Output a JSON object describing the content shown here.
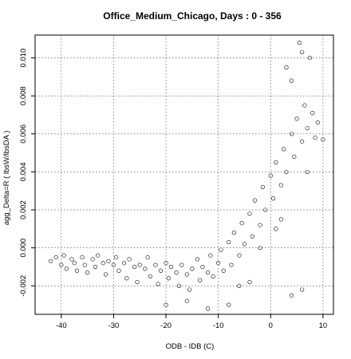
{
  "chart_data": {
    "type": "scatter",
    "title": "Office_Medium_Chicago,  Days : 0 - 356",
    "xlabel": "ODB - IDB (C)",
    "ylabel": "agg_Delta=R  ( lbsW/lbsDA )",
    "xlim": [
      -45,
      12
    ],
    "ylim": [
      -0.0035,
      0.0112
    ],
    "xticks": [
      -40,
      -30,
      -20,
      -10,
      0,
      10
    ],
    "yticks": [
      -0.002,
      0.0,
      0.002,
      0.004,
      0.006,
      0.008,
      0.01
    ],
    "xtick_labels": [
      "-40",
      "-30",
      "-20",
      "-10",
      "0",
      "10"
    ],
    "ytick_labels": [
      "-0.002",
      "0.000",
      "0.002",
      "0.004",
      "0.006",
      "0.008",
      "0.010"
    ],
    "grid": true,
    "marker": "open-circle",
    "color": "#000000",
    "series": [
      {
        "points": [
          [
            -42,
            -0.0007
          ],
          [
            -41,
            -0.0005
          ],
          [
            -40,
            -0.0009
          ],
          [
            -39.5,
            -0.0004
          ],
          [
            -39,
            -0.0011
          ],
          [
            -38,
            -0.0006
          ],
          [
            -37.5,
            -0.0008
          ],
          [
            -37,
            -0.0012
          ],
          [
            -36,
            -0.0005
          ],
          [
            -35.5,
            -0.0009
          ],
          [
            -35,
            -0.0013
          ],
          [
            -34,
            -0.0006
          ],
          [
            -33.5,
            -0.001
          ],
          [
            -33,
            -0.0004
          ],
          [
            -32,
            -0.0008
          ],
          [
            -31.5,
            -0.0014
          ],
          [
            -31,
            -0.0007
          ],
          [
            -30,
            -0.0009
          ],
          [
            -29.5,
            -0.0005
          ],
          [
            -29,
            -0.0012
          ],
          [
            -28,
            -0.0008
          ],
          [
            -27.5,
            -0.0016
          ],
          [
            -27,
            -0.0006
          ],
          [
            -26,
            -0.001
          ],
          [
            -25.5,
            -0.0018
          ],
          [
            -25,
            -0.0009
          ],
          [
            -24,
            -0.0011
          ],
          [
            -23.5,
            -0.0005
          ],
          [
            -23,
            -0.0015
          ],
          [
            -22,
            -0.0009
          ],
          [
            -21.5,
            -0.0019
          ],
          [
            -21,
            -0.0012
          ],
          [
            -20,
            -0.0008
          ],
          [
            -19.5,
            -0.0016
          ],
          [
            -19,
            -0.001
          ],
          [
            -18,
            -0.0013
          ],
          [
            -17.5,
            -0.002
          ],
          [
            -17,
            -0.0009
          ],
          [
            -16,
            -0.0014
          ],
          [
            -15.5,
            -0.0022
          ],
          [
            -15,
            -0.0011
          ],
          [
            -14,
            -0.0006
          ],
          [
            -13.5,
            -0.0017
          ],
          [
            -13,
            -0.001
          ],
          [
            -12,
            -0.0013
          ],
          [
            -11.5,
            -0.0004
          ],
          [
            -11,
            -0.0015
          ],
          [
            -10,
            -0.0008
          ],
          [
            -9.5,
            -0.0001
          ],
          [
            -9,
            -0.0012
          ],
          [
            -8,
            0.0003
          ],
          [
            -7.5,
            -0.0009
          ],
          [
            -7,
            0.0008
          ],
          [
            -6,
            -0.0004
          ],
          [
            -5.5,
            0.0013
          ],
          [
            -5,
            0.0002
          ],
          [
            -4,
            0.0018
          ],
          [
            -3.5,
            0.0006
          ],
          [
            -3,
            0.0025
          ],
          [
            -2,
            0.0012
          ],
          [
            -1.5,
            0.0032
          ],
          [
            -1,
            0.002
          ],
          [
            0,
            0.0038
          ],
          [
            0.5,
            0.0026
          ],
          [
            1,
            0.0045
          ],
          [
            2,
            0.0033
          ],
          [
            2.5,
            0.0052
          ],
          [
            3,
            0.004
          ],
          [
            4,
            0.006
          ],
          [
            4.5,
            0.0048
          ],
          [
            5,
            0.0068
          ],
          [
            6,
            0.0056
          ],
          [
            6.5,
            0.0075
          ],
          [
            7,
            0.0063
          ],
          [
            8,
            0.0071
          ],
          [
            8.5,
            0.0058
          ],
          [
            9,
            0.0066
          ],
          [
            10,
            0.0057
          ],
          [
            5.5,
            0.0108
          ],
          [
            6,
            0.0103
          ],
          [
            7.5,
            0.01
          ],
          [
            3,
            0.0095
          ],
          [
            4,
            0.0088
          ],
          [
            -20,
            -0.003
          ],
          [
            -16,
            -0.0028
          ],
          [
            -12,
            -0.0032
          ],
          [
            -8,
            -0.003
          ],
          [
            4,
            -0.0025
          ],
          [
            6,
            -0.0022
          ],
          [
            -2,
            0.0
          ],
          [
            1,
            0.001
          ],
          [
            -6,
            -0.002
          ],
          [
            -4,
            -0.0018
          ],
          [
            2,
            0.0015
          ],
          [
            7,
            0.004
          ]
        ]
      }
    ]
  }
}
